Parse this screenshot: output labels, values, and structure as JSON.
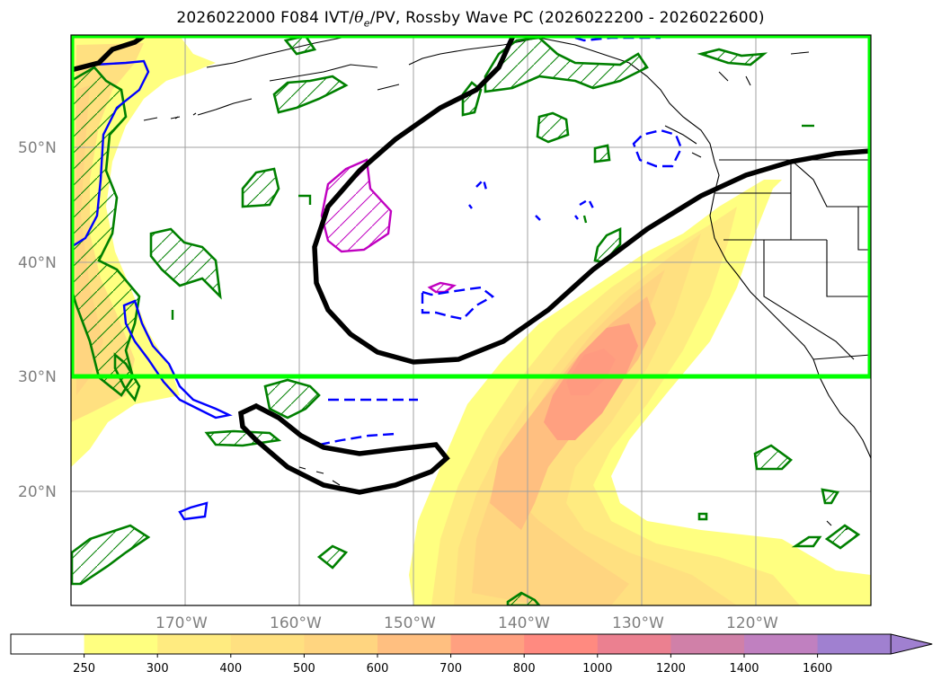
{
  "title": {
    "prefix": "2026022000 F084 IVT/",
    "theta": "θ",
    "theta_sub": "e",
    "suffix": "/PV, Rossby Wave PC (2026022200 - 2026022600)"
  },
  "map": {
    "lat_labels": [
      "50°N",
      "40°N",
      "30°N",
      "20°N"
    ],
    "lon_labels": [
      "170°W",
      "160°W",
      "150°W",
      "140°W",
      "130°W",
      "120°W"
    ],
    "lat_range": [
      10,
      60
    ],
    "lon_range": [
      -180,
      -110
    ],
    "box_lat_range": [
      30,
      60
    ],
    "box_color": "#00ff00",
    "gridlines": true
  },
  "colorbar": {
    "ticks": [
      "250",
      "300",
      "400",
      "500",
      "600",
      "700",
      "800",
      "1000",
      "1200",
      "1400",
      "1600"
    ],
    "colors": [
      "#ffffff",
      "#ffff80",
      "#ffeb80",
      "#ffe080",
      "#ffd580",
      "#ffbf80",
      "#ffa080",
      "#ff8a80",
      "#eb8090",
      "#d080a8",
      "#c080c0",
      "#a080d0"
    ],
    "extend": "max"
  },
  "colors": {
    "rossby_pc": "#000000",
    "pv_positive": "#008000",
    "theta_e_positive": "#0000ff",
    "theta_e_negative": "#0000ff",
    "pv_magenta": "#c000c0"
  }
}
